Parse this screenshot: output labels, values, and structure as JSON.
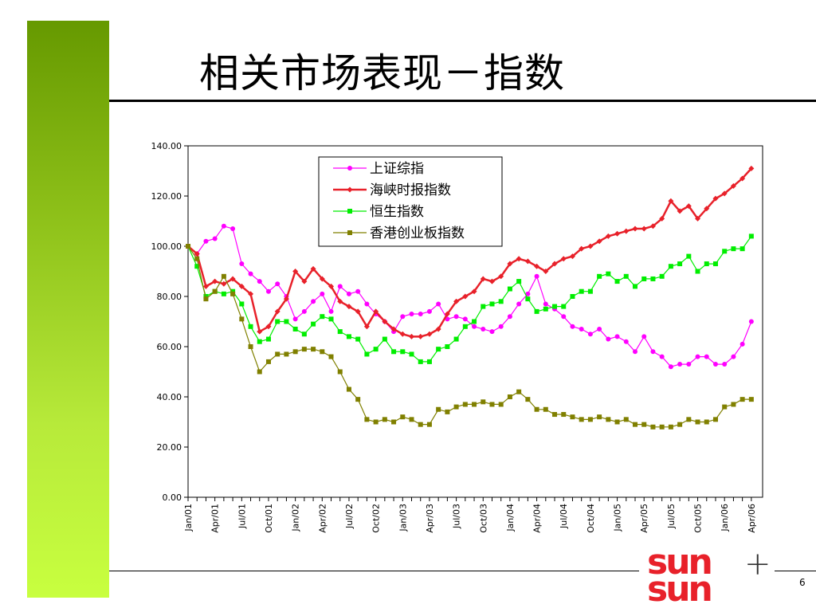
{
  "slide": {
    "title": "相关市场表现－指数",
    "page_number": "6"
  },
  "logo": {
    "top_word": "sun",
    "bottom_word": "sun",
    "plus_glyph": "+"
  },
  "colors": {
    "side_bar_top": "#669900",
    "side_bar_bottom": "#c8ff3f",
    "logo_red": "#e8212a"
  },
  "chart_data": {
    "type": "line",
    "title": "",
    "xlabel": "",
    "ylabel": "",
    "ylim": [
      0,
      140
    ],
    "y_ticks": [
      "0.00",
      "20.00",
      "40.00",
      "60.00",
      "80.00",
      "100.00",
      "120.00",
      "140.00"
    ],
    "x_tick_labels": [
      "Jan/01",
      "Apr/01",
      "Jul/01",
      "Oct/01",
      "Jan/02",
      "Apr/02",
      "Jul/02",
      "Oct/02",
      "Jan/03",
      "Apr/03",
      "Jul/03",
      "Oct/03",
      "Jan/04",
      "Apr/04",
      "Jul/04",
      "Oct/04",
      "Jan/05",
      "Apr/05",
      "Jul/05",
      "Oct/05",
      "Jan/06",
      "Apr/06"
    ],
    "num_points": 64,
    "grid": false,
    "legend_position": "top-center",
    "series": [
      {
        "name": "上证综指",
        "color": "#ff00ff",
        "marker": "circle",
        "values": [
          100,
          97,
          102,
          103,
          108,
          107,
          93,
          89,
          86,
          82,
          85,
          80,
          71,
          74,
          78,
          81,
          74,
          84,
          81,
          82,
          77,
          73,
          70,
          66,
          72,
          73,
          73,
          74,
          77,
          71,
          72,
          71,
          68,
          67,
          66,
          68,
          72,
          77,
          81,
          88,
          77,
          75,
          72,
          68,
          67,
          65,
          67,
          63,
          64,
          62,
          58,
          64,
          58,
          56,
          52,
          53,
          53,
          56,
          56,
          53,
          53,
          56,
          61,
          70
        ]
      },
      {
        "name": "海峡时报指数",
        "color": "#e8212a",
        "marker": "diamond",
        "values": [
          100,
          97,
          84,
          86,
          85,
          87,
          84,
          81,
          66,
          68,
          74,
          79,
          90,
          86,
          91,
          87,
          84,
          78,
          76,
          74,
          68,
          74,
          70,
          67,
          65,
          64,
          64,
          65,
          67,
          73,
          78,
          80,
          82,
          87,
          86,
          88,
          93,
          95,
          94,
          92,
          90,
          93,
          95,
          96,
          99,
          100,
          102,
          104,
          105,
          106,
          107,
          107,
          108,
          111,
          118,
          114,
          116,
          111,
          115,
          119,
          121,
          124,
          127,
          131
        ]
      },
      {
        "name": "恒生指数",
        "color": "#00ee00",
        "marker": "square",
        "values": [
          100,
          92,
          80,
          82,
          81,
          82,
          77,
          68,
          62,
          63,
          70,
          70,
          67,
          65,
          69,
          72,
          71,
          66,
          64,
          63,
          57,
          59,
          63,
          58,
          58,
          57,
          54,
          54,
          59,
          60,
          63,
          68,
          70,
          76,
          77,
          78,
          83,
          86,
          79,
          74,
          75,
          76,
          76,
          80,
          82,
          82,
          88,
          89,
          86,
          88,
          84,
          87,
          87,
          88,
          92,
          93,
          96,
          90,
          93,
          93,
          98,
          99,
          99,
          104
        ]
      },
      {
        "name": "香港创业板指数",
        "color": "#808000",
        "marker": "square",
        "values": [
          100,
          95,
          79,
          82,
          88,
          81,
          71,
          60,
          50,
          54,
          57,
          57,
          58,
          59,
          59,
          58,
          56,
          50,
          43,
          39,
          31,
          30,
          31,
          30,
          32,
          31,
          29,
          29,
          35,
          34,
          36,
          37,
          37,
          38,
          37,
          37,
          40,
          42,
          39,
          35,
          35,
          33,
          33,
          32,
          31,
          31,
          32,
          31,
          30,
          31,
          29,
          29,
          28,
          28,
          28,
          29,
          31,
          30,
          30,
          31,
          36,
          37,
          39,
          39
        ]
      }
    ]
  }
}
